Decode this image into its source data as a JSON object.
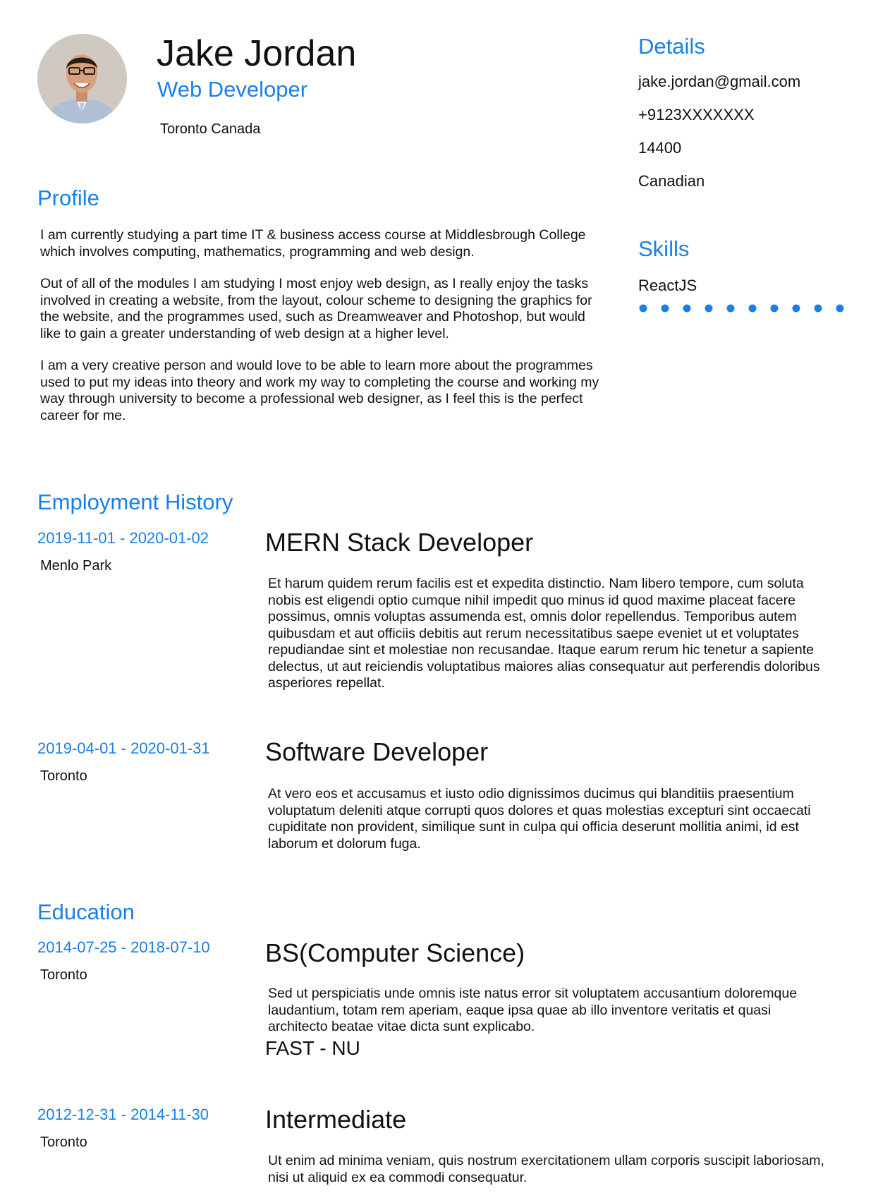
{
  "header": {
    "name": "Jake Jordan",
    "role": "Web Developer",
    "location": "Toronto Canada"
  },
  "details": {
    "heading": "Details",
    "email": "jake.jordan@gmail.com",
    "phone": "+9123XXXXXXX",
    "postal": "14400",
    "nationality": "Canadian"
  },
  "skills": {
    "heading": "Skills",
    "items": [
      {
        "name": "ReactJS",
        "level": 10,
        "max": 10
      }
    ]
  },
  "profile": {
    "heading": "Profile",
    "paragraphs": [
      "I am currently studying a part time IT & business access course at Middlesbrough College which involves computing, mathematics, programming and web design.",
      "Out of all of the modules I am studying I most enjoy web design, as I really enjoy the tasks involved in creating a website, from the layout, colour scheme to designing the graphics for the website, and the programmes used, such as Dreamweaver and Photoshop, but would like to gain a greater understanding of web design at a higher level.",
      "I am a very creative person and would love to be able to learn more about the programmes used to put my ideas into theory and work my way to completing the course and working my way through university to become a professional web designer, as I feel this is the perfect career for me."
    ]
  },
  "employment": {
    "heading": "Employment History",
    "items": [
      {
        "dates": "2019-11-01 - 2020-01-02",
        "location": "Menlo Park",
        "title": "MERN Stack Developer",
        "description": "Et harum quidem rerum facilis est et expedita distinctio. Nam libero tempore, cum soluta nobis est eligendi optio cumque nihil impedit quo minus id quod maxime placeat facere possimus, omnis voluptas assumenda est, omnis dolor repellendus. Temporibus autem quibusdam et aut officiis debitis aut rerum necessitatibus saepe eveniet ut et voluptates repudiandae sint et molestiae non recusandae. Itaque earum rerum hic tenetur a sapiente delectus, ut aut reiciendis voluptatibus maiores alias consequatur aut perferendis doloribus asperiores repellat."
      },
      {
        "dates": "2019-04-01 - 2020-01-31",
        "location": "Toronto",
        "title": "Software Developer",
        "description": "At vero eos et accusamus et iusto odio dignissimos ducimus qui blanditiis praesentium voluptatum deleniti atque corrupti quos dolores et quas molestias excepturi sint occaecati cupiditate non provident, similique sunt in culpa qui officia deserunt mollitia animi, id est laborum et dolorum fuga."
      }
    ]
  },
  "education": {
    "heading": "Education",
    "items": [
      {
        "dates": "2014-07-25 - 2018-07-10",
        "location": "Toronto",
        "title": "BS(Computer Science)",
        "description": "Sed ut perspiciatis unde omnis iste natus error sit voluptatem accusantium doloremque laudantium, totam rem aperiam, eaque ipsa quae ab illo inventore veritatis et quasi architecto beatae vitae dicta sunt explicabo.",
        "institution": "FAST - NU"
      },
      {
        "dates": "2012-12-31 - 2014-11-30",
        "location": "Toronto",
        "title": "Intermediate",
        "description": "Ut enim ad minima veniam, quis nostrum exercitationem ullam corporis suscipit laboriosam, nisi ut aliquid ex ea commodi consequatur."
      }
    ]
  },
  "colors": {
    "accent": "#1a7fe6",
    "text": "#111111"
  }
}
